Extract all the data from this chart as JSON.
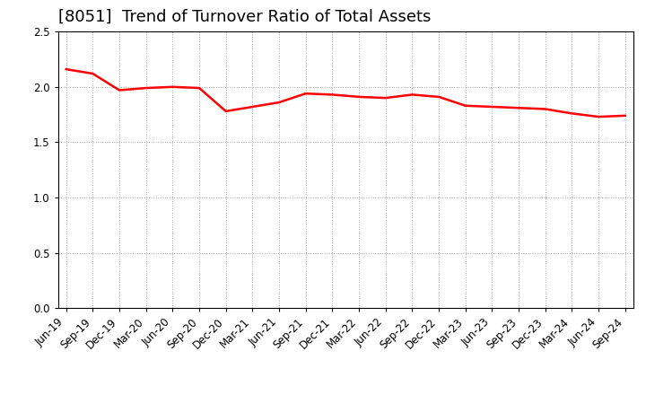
{
  "title": "[8051]  Trend of Turnover Ratio of Total Assets",
  "line_color": "#FF0000",
  "background_color": "#FFFFFF",
  "grid_color": "#AAAAAA",
  "ylim": [
    0.0,
    2.5
  ],
  "yticks": [
    0.0,
    0.5,
    1.0,
    1.5,
    2.0,
    2.5
  ],
  "x_labels": [
    "Jun-19",
    "Sep-19",
    "Dec-19",
    "Mar-20",
    "Jun-20",
    "Sep-20",
    "Dec-20",
    "Mar-21",
    "Jun-21",
    "Sep-21",
    "Dec-21",
    "Mar-22",
    "Jun-22",
    "Sep-22",
    "Dec-22",
    "Mar-23",
    "Jun-23",
    "Sep-23",
    "Dec-23",
    "Mar-24",
    "Jun-24",
    "Sep-24"
  ],
  "values": [
    2.16,
    2.12,
    1.97,
    1.99,
    2.0,
    1.99,
    1.78,
    1.82,
    1.86,
    1.94,
    1.93,
    1.91,
    1.9,
    1.93,
    1.91,
    1.83,
    1.82,
    1.81,
    1.8,
    1.76,
    1.73,
    1.74
  ],
  "title_fontsize": 13,
  "tick_fontsize": 8.5,
  "line_width": 1.8
}
